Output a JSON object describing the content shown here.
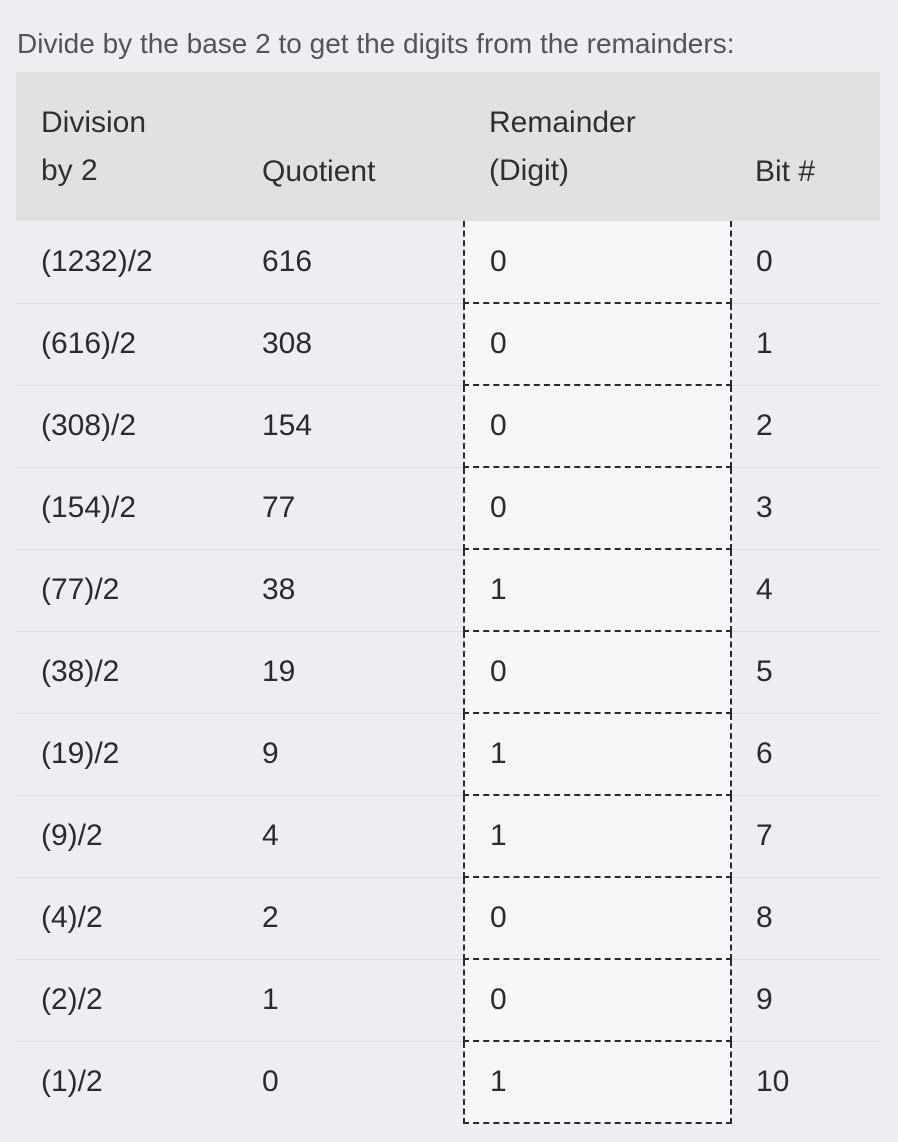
{
  "intro_text": "Divide by the base 2 to get the digits from the remainders:",
  "table": {
    "headers": {
      "division_line1": "Division",
      "division_line2": "by 2",
      "quotient": "Quotient",
      "remainder_line1": "Remainder",
      "remainder_line2": "(Digit)",
      "bit": "Bit #"
    },
    "rows": [
      {
        "division": "(1232)/2",
        "quotient": "616",
        "remainder": "0",
        "bit": "0"
      },
      {
        "division": "(616)/2",
        "quotient": "308",
        "remainder": "0",
        "bit": "1"
      },
      {
        "division": "(308)/2",
        "quotient": "154",
        "remainder": "0",
        "bit": "2"
      },
      {
        "division": "(154)/2",
        "quotient": "77",
        "remainder": "0",
        "bit": "3"
      },
      {
        "division": "(77)/2",
        "quotient": "38",
        "remainder": "1",
        "bit": "4"
      },
      {
        "division": "(38)/2",
        "quotient": "19",
        "remainder": "0",
        "bit": "5"
      },
      {
        "division": "(19)/2",
        "quotient": "9",
        "remainder": "1",
        "bit": "6"
      },
      {
        "division": "(9)/2",
        "quotient": "4",
        "remainder": "1",
        "bit": "7"
      },
      {
        "division": "(4)/2",
        "quotient": "2",
        "remainder": "0",
        "bit": "8"
      },
      {
        "division": "(2)/2",
        "quotient": "1",
        "remainder": "0",
        "bit": "9"
      },
      {
        "division": "(1)/2",
        "quotient": "0",
        "remainder": "1",
        "bit": "10"
      }
    ]
  },
  "colors": {
    "page_background": "#edeef2",
    "header_background": "#e1e1e1",
    "remainder_column_background": "#f4f6f7",
    "dashed_border": "#2a2a2a"
  }
}
